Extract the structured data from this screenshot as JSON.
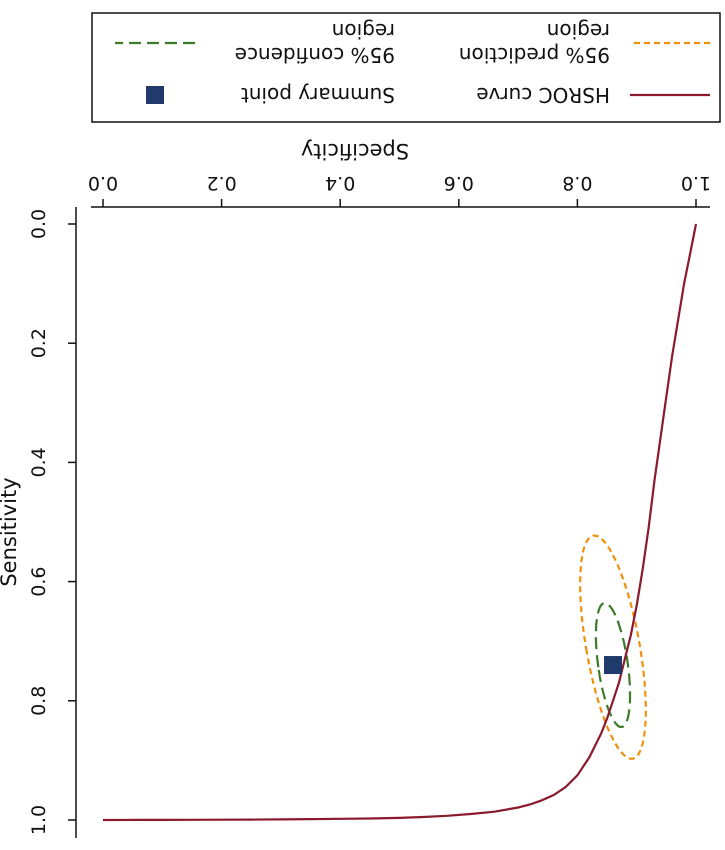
{
  "chart_data": {
    "type": "line",
    "x_axis": {
      "label": "Specificity",
      "range": [
        0.0,
        1.0
      ],
      "reversed": true,
      "ticks": [
        1.0,
        0.8,
        0.6,
        0.4,
        0.2,
        0.0
      ],
      "tick_labels": [
        "1.0",
        "0.8",
        "0.6",
        "0.4",
        "0.2",
        "0.0"
      ],
      "position": "top"
    },
    "y_axis": {
      "label": "Sensitivity",
      "range": [
        0.0,
        1.0
      ],
      "reversed": true,
      "ticks": [
        0.0,
        0.2,
        0.4,
        0.6,
        0.8,
        1.0
      ],
      "tick_labels": [
        "0.0",
        "0.2",
        "0.4",
        "0.6",
        "0.8",
        "1.0"
      ]
    },
    "grid": false,
    "legend": {
      "placement": "top",
      "entries": [
        {
          "label": "95% confidence region",
          "lines": [
            "95% confidence",
            "region"
          ],
          "style": "long-dash",
          "color": "#3d7a2a"
        },
        {
          "label": "95% prediction region",
          "lines": [
            "95% prediction",
            "region"
          ],
          "style": "short-dash",
          "color": "#f0900f"
        },
        {
          "label": "Summary point",
          "lines": [
            "Summary point"
          ],
          "style": "square",
          "color": "#1f3a6b"
        },
        {
          "label": "HSROC curve",
          "lines": [
            "HSROC curve"
          ],
          "style": "solid",
          "color": "#8b1a2c"
        }
      ]
    },
    "summary_point": {
      "specificity": 0.86,
      "sensitivity": 0.74
    },
    "confidence_region": {
      "center": {
        "specificity": 0.86,
        "sensitivity": 0.74
      },
      "semi_axis_x": 0.025,
      "semi_axis_y": 0.105,
      "tilt_deg": -8
    },
    "prediction_region": {
      "center": {
        "specificity": 0.86,
        "sensitivity": 0.71
      },
      "semi_axis_x": 0.045,
      "semi_axis_y": 0.19,
      "tilt_deg": -10
    },
    "hsroc_curve": {
      "specificity": [
        1.0,
        0.99,
        0.98,
        0.97,
        0.96,
        0.95,
        0.94,
        0.93,
        0.92,
        0.91,
        0.9,
        0.89,
        0.88,
        0.87,
        0.86,
        0.85,
        0.84,
        0.83,
        0.82,
        0.81,
        0.8,
        0.78,
        0.76,
        0.74,
        0.72,
        0.7,
        0.66,
        0.62,
        0.58,
        0.54,
        0.5,
        0.45,
        0.4,
        0.35,
        0.3,
        0.25,
        0.2,
        0.15,
        0.1,
        0.05,
        0.0
      ],
      "sensitivity": [
        0.0,
        0.05,
        0.1,
        0.16,
        0.22,
        0.29,
        0.36,
        0.43,
        0.51,
        0.58,
        0.64,
        0.69,
        0.73,
        0.77,
        0.8,
        0.83,
        0.855,
        0.875,
        0.895,
        0.91,
        0.925,
        0.945,
        0.958,
        0.967,
        0.974,
        0.979,
        0.986,
        0.99,
        0.993,
        0.995,
        0.9965,
        0.9975,
        0.998,
        0.9985,
        0.999,
        0.9993,
        0.9995,
        0.9997,
        0.9998,
        0.9999,
        1.0
      ]
    }
  }
}
